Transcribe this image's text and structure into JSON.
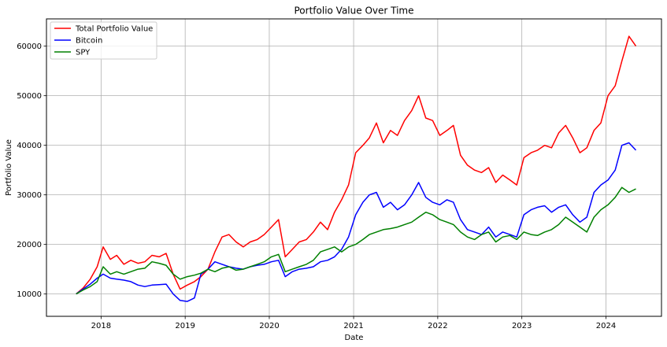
{
  "chart_data": {
    "type": "line",
    "title": "Portfolio Value Over Time",
    "xlabel": "Date",
    "ylabel": "Portfolio Value",
    "xlim": [
      "2017-05-09",
      "2024-08-29"
    ],
    "ylim": [
      5500,
      65500
    ],
    "x_ticks": [
      "2018",
      "2019",
      "2020",
      "2021",
      "2022",
      "2023",
      "2024"
    ],
    "y_ticks": [
      10000,
      20000,
      30000,
      40000,
      50000,
      60000
    ],
    "grid": true,
    "legend_position": "top-left",
    "series": [
      {
        "name": "Total Portfolio Value",
        "color": "#ff0000",
        "x": [
          "2017-09-15",
          "2017-10-15",
          "2017-11-15",
          "2017-12-15",
          "2018-01-10",
          "2018-02-10",
          "2018-03-10",
          "2018-04-10",
          "2018-05-10",
          "2018-06-10",
          "2018-07-10",
          "2018-08-10",
          "2018-09-10",
          "2018-10-10",
          "2018-11-10",
          "2018-12-10",
          "2019-01-10",
          "2019-02-10",
          "2019-03-10",
          "2019-04-10",
          "2019-05-10",
          "2019-06-10",
          "2019-07-10",
          "2019-08-10",
          "2019-09-10",
          "2019-10-10",
          "2019-11-10",
          "2019-12-10",
          "2020-01-10",
          "2020-02-10",
          "2020-03-10",
          "2020-04-10",
          "2020-05-10",
          "2020-06-10",
          "2020-07-10",
          "2020-08-10",
          "2020-09-10",
          "2020-10-10",
          "2020-11-10",
          "2020-12-10",
          "2021-01-10",
          "2021-02-10",
          "2021-03-10",
          "2021-04-10",
          "2021-05-10",
          "2021-06-10",
          "2021-07-10",
          "2021-08-10",
          "2021-09-10",
          "2021-10-10",
          "2021-11-10",
          "2021-12-10",
          "2022-01-10",
          "2022-02-10",
          "2022-03-10",
          "2022-04-10",
          "2022-05-10",
          "2022-06-10",
          "2022-07-10",
          "2022-08-10",
          "2022-09-10",
          "2022-10-10",
          "2022-11-10",
          "2022-12-10",
          "2023-01-10",
          "2023-02-10",
          "2023-03-10",
          "2023-04-10",
          "2023-05-10",
          "2023-06-10",
          "2023-07-10",
          "2023-08-10",
          "2023-09-10",
          "2023-10-10",
          "2023-11-10",
          "2023-12-10",
          "2024-01-10",
          "2024-02-10",
          "2024-03-10",
          "2024-04-10",
          "2024-05-10"
        ],
        "y": [
          10000,
          11200,
          13000,
          15500,
          19500,
          17000,
          17800,
          16000,
          16800,
          16200,
          16500,
          17800,
          17500,
          18200,
          14000,
          11000,
          11800,
          12500,
          13500,
          15000,
          18500,
          21500,
          22000,
          20500,
          19500,
          20500,
          21000,
          22000,
          23500,
          25000,
          17500,
          19000,
          20500,
          21000,
          22500,
          24500,
          23000,
          26500,
          29000,
          32000,
          38500,
          40000,
          41500,
          44500,
          40500,
          43000,
          42000,
          45000,
          47000,
          50000,
          45500,
          45000,
          42000,
          43000,
          44000,
          38000,
          36000,
          35000,
          34500,
          35500,
          32500,
          34000,
          33000,
          32000,
          37500,
          38500,
          39000,
          40000,
          39500,
          42500,
          44000,
          41500,
          38500,
          39500,
          43000,
          44500,
          50000,
          52000,
          57000,
          62000,
          60000
        ]
      },
      {
        "name": "Bitcoin",
        "color": "#0000ff",
        "x": [
          "2017-09-15",
          "2017-10-15",
          "2017-11-15",
          "2017-12-15",
          "2018-01-10",
          "2018-02-10",
          "2018-03-10",
          "2018-04-10",
          "2018-05-10",
          "2018-06-10",
          "2018-07-10",
          "2018-08-10",
          "2018-09-10",
          "2018-10-10",
          "2018-11-10",
          "2018-12-10",
          "2019-01-10",
          "2019-02-10",
          "2019-03-10",
          "2019-04-10",
          "2019-05-10",
          "2019-06-10",
          "2019-07-10",
          "2019-08-10",
          "2019-09-10",
          "2019-10-10",
          "2019-11-10",
          "2019-12-10",
          "2020-01-10",
          "2020-02-10",
          "2020-03-10",
          "2020-04-10",
          "2020-05-10",
          "2020-06-10",
          "2020-07-10",
          "2020-08-10",
          "2020-09-10",
          "2020-10-10",
          "2020-11-10",
          "2020-12-10",
          "2021-01-10",
          "2021-02-10",
          "2021-03-10",
          "2021-04-10",
          "2021-05-10",
          "2021-06-10",
          "2021-07-10",
          "2021-08-10",
          "2021-09-10",
          "2021-10-10",
          "2021-11-10",
          "2021-12-10",
          "2022-01-10",
          "2022-02-10",
          "2022-03-10",
          "2022-04-10",
          "2022-05-10",
          "2022-06-10",
          "2022-07-10",
          "2022-08-10",
          "2022-09-10",
          "2022-10-10",
          "2022-11-10",
          "2022-12-10",
          "2023-01-10",
          "2023-02-10",
          "2023-03-10",
          "2023-04-10",
          "2023-05-10",
          "2023-06-10",
          "2023-07-10",
          "2023-08-10",
          "2023-09-10",
          "2023-10-10",
          "2023-11-10",
          "2023-12-10",
          "2024-01-10",
          "2024-02-10",
          "2024-03-10",
          "2024-04-10",
          "2024-05-10"
        ],
        "y": [
          10000,
          11000,
          12000,
          13200,
          14000,
          13200,
          13000,
          12800,
          12500,
          11800,
          11500,
          11800,
          11900,
          12000,
          10000,
          8700,
          8500,
          9200,
          14000,
          15000,
          16500,
          16000,
          15500,
          15200,
          15000,
          15500,
          15800,
          16000,
          16500,
          16800,
          13500,
          14500,
          15000,
          15200,
          15500,
          16500,
          16800,
          17500,
          19000,
          21500,
          26000,
          28500,
          30000,
          30500,
          27500,
          28500,
          27000,
          28000,
          30000,
          32500,
          29500,
          28500,
          28000,
          29000,
          28500,
          25000,
          23000,
          22500,
          22000,
          23500,
          21500,
          22500,
          22000,
          21500,
          26000,
          27000,
          27500,
          27800,
          26500,
          27500,
          28000,
          26000,
          24500,
          25500,
          30500,
          32000,
          33000,
          35000,
          40000,
          40500,
          39000
        ]
      },
      {
        "name": "SPY",
        "color": "#008000",
        "x": [
          "2017-09-15",
          "2017-10-15",
          "2017-11-15",
          "2017-12-15",
          "2018-01-10",
          "2018-02-10",
          "2018-03-10",
          "2018-04-10",
          "2018-05-10",
          "2018-06-10",
          "2018-07-10",
          "2018-08-10",
          "2018-09-10",
          "2018-10-10",
          "2018-11-10",
          "2018-12-10",
          "2019-01-10",
          "2019-02-10",
          "2019-03-10",
          "2019-04-10",
          "2019-05-10",
          "2019-06-10",
          "2019-07-10",
          "2019-08-10",
          "2019-09-10",
          "2019-10-10",
          "2019-11-10",
          "2019-12-10",
          "2020-01-10",
          "2020-02-10",
          "2020-03-10",
          "2020-04-10",
          "2020-05-10",
          "2020-06-10",
          "2020-07-10",
          "2020-08-10",
          "2020-09-10",
          "2020-10-10",
          "2020-11-10",
          "2020-12-10",
          "2021-01-10",
          "2021-02-10",
          "2021-03-10",
          "2021-04-10",
          "2021-05-10",
          "2021-06-10",
          "2021-07-10",
          "2021-08-10",
          "2021-09-10",
          "2021-10-10",
          "2021-11-10",
          "2021-12-10",
          "2022-01-10",
          "2022-02-10",
          "2022-03-10",
          "2022-04-10",
          "2022-05-10",
          "2022-06-10",
          "2022-07-10",
          "2022-08-10",
          "2022-09-10",
          "2022-10-10",
          "2022-11-10",
          "2022-12-10",
          "2023-01-10",
          "2023-02-10",
          "2023-03-10",
          "2023-04-10",
          "2023-05-10",
          "2023-06-10",
          "2023-07-10",
          "2023-08-10",
          "2023-09-10",
          "2023-10-10",
          "2023-11-10",
          "2023-12-10",
          "2024-01-10",
          "2024-02-10",
          "2024-03-10",
          "2024-04-10",
          "2024-05-10"
        ],
        "y": [
          10000,
          10800,
          11500,
          12500,
          15500,
          14000,
          14500,
          14000,
          14500,
          15000,
          15200,
          16500,
          16200,
          15800,
          14000,
          13000,
          13500,
          13800,
          14200,
          15000,
          14500,
          15200,
          15500,
          14800,
          15000,
          15500,
          16000,
          16500,
          17500,
          18000,
          14500,
          15000,
          15500,
          16000,
          16800,
          18500,
          19000,
          19500,
          18500,
          19500,
          20000,
          21000,
          22000,
          22500,
          23000,
          23200,
          23500,
          24000,
          24500,
          25500,
          26500,
          26000,
          25000,
          24500,
          24000,
          22500,
          21500,
          21000,
          22000,
          22500,
          20500,
          21500,
          21800,
          21000,
          22500,
          22000,
          21800,
          22500,
          23000,
          24000,
          25500,
          24500,
          23500,
          22500,
          25500,
          27000,
          28000,
          29500,
          31500,
          30500,
          31200
        ]
      }
    ]
  }
}
